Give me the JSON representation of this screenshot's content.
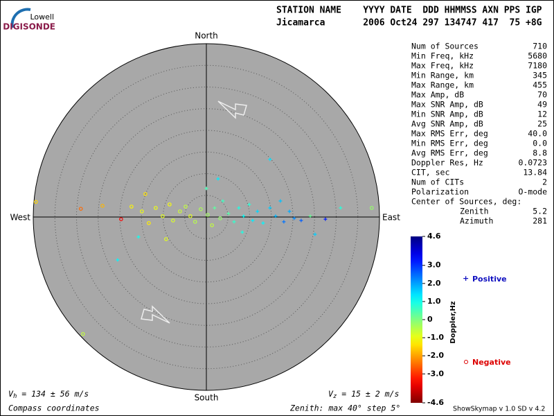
{
  "chart_data": {
    "type": "skymap",
    "logo": {
      "top": "Lowell",
      "bottom": "DIGISONDE"
    },
    "header": {
      "labels": "STATION NAME    YYYY DATE  DDD HHMMSS AXN PPS IGP",
      "values": "Jicamarca       2006 Oct24 297 134747 417  75 +8G"
    },
    "directions": {
      "north": "North",
      "south": "South",
      "west": "West",
      "east": "East"
    },
    "zenith_max": 40,
    "zenith_step": 5,
    "stats": [
      {
        "label": "Num of Sources",
        "value": "710"
      },
      {
        "label": "Min Freq, kHz",
        "value": "5680"
      },
      {
        "label": "Max Freq, kHz",
        "value": "7180"
      },
      {
        "label": "Min Range, km",
        "value": "345"
      },
      {
        "label": "Max Range, km",
        "value": "455"
      },
      {
        "label": "Max Amp, dB",
        "value": "70"
      },
      {
        "label": "Max SNR Amp, dB",
        "value": "49"
      },
      {
        "label": "Min SNR Amp, dB",
        "value": "12"
      },
      {
        "label": "Avg SNR Amp, dB",
        "value": "25"
      },
      {
        "label": "Max RMS Err, deg",
        "value": "40.0"
      },
      {
        "label": "Min RMS Err, deg",
        "value": "0.0"
      },
      {
        "label": "Avg RMS Err, deg",
        "value": "8.8"
      },
      {
        "label": "Doppler Res, Hz",
        "value": "0.0723"
      },
      {
        "label": "CIT, sec",
        "value": "13.84"
      },
      {
        "label": "Num of CITs",
        "value": "2"
      },
      {
        "label": "Polarization",
        "value": "O-mode"
      }
    ],
    "center": {
      "title": "Center of Sources, deg:",
      "rows": [
        {
          "label": "Zenith",
          "value": "5.2"
        },
        {
          "label": "Azimuth",
          "value": "281"
        }
      ]
    },
    "colorbar": {
      "label": "Doppler,Hz",
      "clim": [
        -4.6,
        4.6
      ],
      "ticks": [
        4.6,
        {
          "value": 3,
          "label": "3.0"
        },
        {
          "value": 2,
          "label": "2.0"
        },
        {
          "value": 1,
          "label": "1.0"
        },
        0,
        {
          "value": -1,
          "label": "-1.0"
        },
        {
          "value": -2,
          "label": "-2.0"
        },
        {
          "value": -3,
          "label": "-3.0"
        },
        -4.6
      ]
    },
    "legend": {
      "positive": "Positive",
      "negative": "Negative"
    },
    "points": {
      "x": [
        -39.4,
        -29,
        -24,
        -19.7,
        -17.3,
        -14.9,
        -13.3,
        -11.7,
        -10.1,
        -8.5,
        -7.7,
        -6.1,
        -4.8,
        -3.7,
        -2.6,
        -1.3,
        0,
        0.3,
        1.3,
        1.9,
        3.2,
        3.8,
        5.1,
        6.4,
        7.5,
        8.6,
        9.9,
        10.7,
        11.8,
        13.1,
        14.7,
        14.7,
        16,
        17.1,
        17.9,
        19.2,
        20.3,
        21.9,
        24,
        25.1,
        27.5,
        31,
        38.2,
        -28.5,
        -20.5,
        -15.7,
        2.7,
        -9.3,
        -14.1,
        8.3
      ],
      "y": [
        3.5,
        1.9,
        2.6,
        -0.5,
        2.4,
        1.3,
        -1.4,
        2.1,
        0.2,
        2.9,
        -0.8,
        1.3,
        2.4,
        0.2,
        -1.1,
        1.8,
        6.6,
        0.5,
        -1.9,
        2.1,
        -0.3,
        3.7,
        0.8,
        -1.1,
        2.1,
        0.2,
        2.9,
        -0.8,
        1.3,
        -1.4,
        2.1,
        13.3,
        0.2,
        3.7,
        -1.1,
        1.3,
        -0.3,
        -0.8,
        0.2,
        -4,
        -0.5,
        2.1,
        2.1,
        -27,
        -9.9,
        -4.6,
        8.8,
        -5.1,
        5.3,
        -3.5
      ],
      "doppler": [
        -1.5,
        -2.5,
        -1.8,
        -3.5,
        -1.2,
        -1,
        -1.3,
        -1,
        -0.9,
        -1.1,
        -0.8,
        -0.7,
        -0.6,
        -0.9,
        -0.5,
        -0.4,
        0.5,
        -0.3,
        -0.6,
        0.3,
        -0.2,
        0.6,
        0.4,
        0.7,
        0.9,
        1.1,
        0.8,
        1.3,
        1.5,
        1.2,
        1.6,
        1.4,
        1.8,
        1.7,
        2.4,
        1.9,
        2.2,
        2.6,
        0.2,
        1.6,
        3.2,
        0.8,
        -0.2,
        -0.6,
        1.2,
        1,
        1.3,
        -0.9,
        -1.4,
        0.9
      ]
    },
    "footer": {
      "vh": {
        "symbol": "V",
        "sub": "h",
        "text": " = 134 ± 56 m/s"
      },
      "vz": {
        "symbol": "V",
        "sub": "z",
        "text": " = 15 ± 2 m/s"
      },
      "coords": "Compass coordinates",
      "zenith": "Zenith: max 40°  step 5°",
      "version": "ShowSkymap v 1.0   SD v 4.2"
    }
  }
}
